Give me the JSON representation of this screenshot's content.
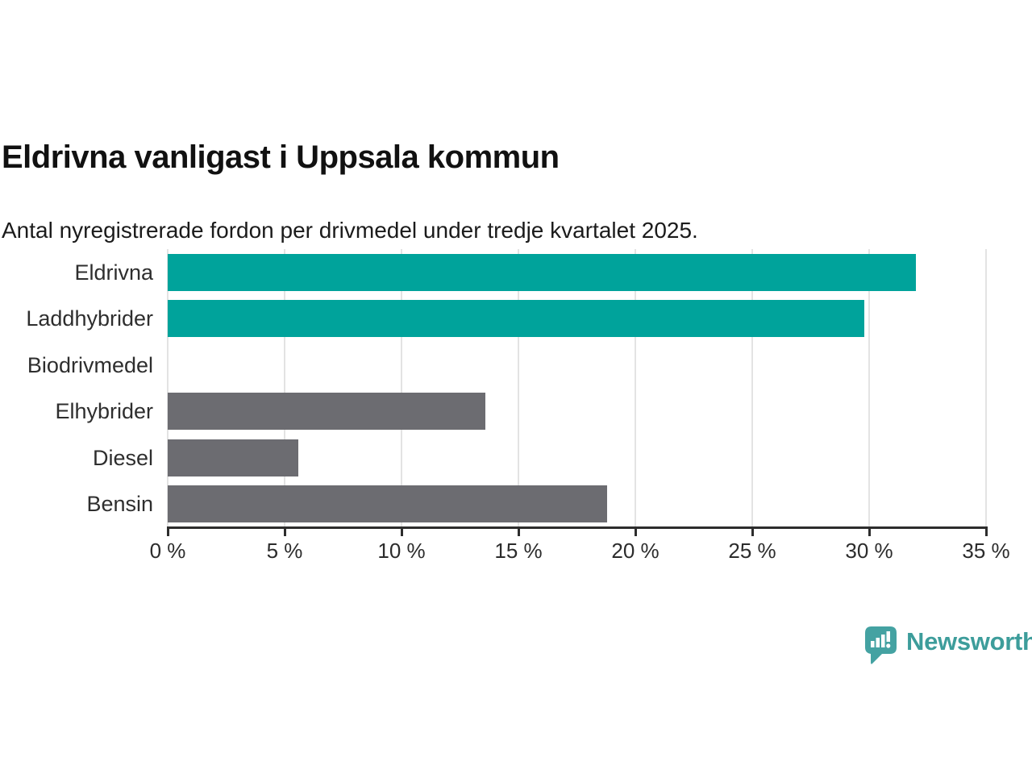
{
  "header": {
    "title": "Eldrivna vanligast i Uppsala kommun",
    "subtitle": "Antal nyregistrerade fordon per drivmedel under tredje kvartalet 2025."
  },
  "chart_data": {
    "type": "bar",
    "orientation": "horizontal",
    "title": "Eldrivna vanligast i Uppsala kommun",
    "subtitle": "Antal nyregistrerade fordon per drivmedel under tredje kvartalet 2025.",
    "categories": [
      "Eldrivna",
      "Laddhybrider",
      "Biodrivmedel",
      "Elhybrider",
      "Diesel",
      "Bensin"
    ],
    "values": [
      32.0,
      29.8,
      0,
      13.6,
      5.6,
      18.8
    ],
    "unit": "%",
    "xlabel": "",
    "ylabel": "",
    "xlim": [
      0,
      35
    ],
    "xticks": [
      0,
      5,
      10,
      15,
      20,
      25,
      30,
      35
    ],
    "tick_suffix": " %",
    "grid": true,
    "legend": false,
    "colors": {
      "highlight": "#00A39B",
      "default": "#6C6C71",
      "by_category": [
        "#00A39B",
        "#00A39B",
        "#6C6C71",
        "#6C6C71",
        "#6C6C71",
        "#6C6C71"
      ]
    }
  },
  "footer": {
    "brand": "Newsworthy",
    "logo_color": "#44A2A2",
    "brand_text_color": "#3D9D9B"
  }
}
